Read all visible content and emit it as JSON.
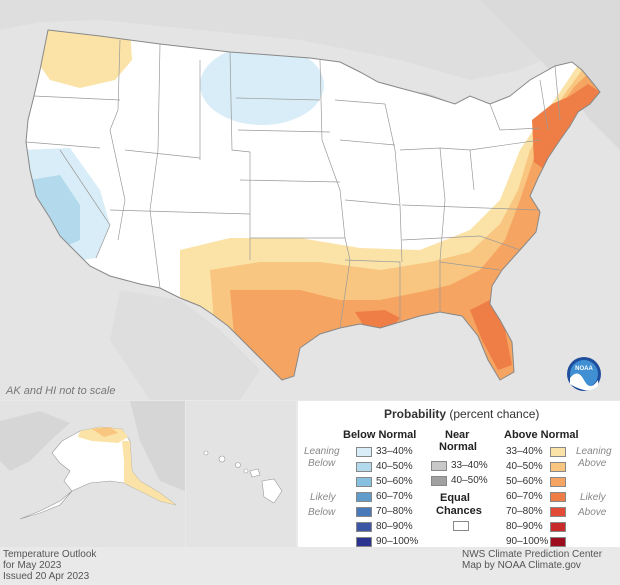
{
  "map_title": "Temperature Outlook",
  "period": "for May 2023",
  "issued": "Issued 20 Apr 2023",
  "scale_note": "AK and HI not to scale",
  "credit_line1": "NWS Climate Prediction Center",
  "credit_line2": "Map by NOAA Climate.gov",
  "logo_text": "NOAA",
  "legend": {
    "title_bold": "Probability",
    "title_rest": " (percent chance)",
    "below_header": "Below Normal",
    "near_header_1": "Near",
    "near_header_2": "Normal",
    "above_header": "Above Normal",
    "leaning_below_1": "Leaning",
    "leaning_below_2": "Below",
    "likely_below_1": "Likely",
    "likely_below_2": "Below",
    "leaning_above_1": "Leaning",
    "leaning_above_2": "Above",
    "likely_above_1": "Likely",
    "likely_above_2": "Above",
    "equal_1": "Equal",
    "equal_2": "Chances",
    "below": [
      {
        "label": "33–40%",
        "color": "#d8edf7"
      },
      {
        "label": "40–50%",
        "color": "#b2d9ec"
      },
      {
        "label": "50–60%",
        "color": "#86bfdf"
      },
      {
        "label": "60–70%",
        "color": "#5f9ccb"
      },
      {
        "label": "70–80%",
        "color": "#4a79b9"
      },
      {
        "label": "80–90%",
        "color": "#3a56a5"
      },
      {
        "label": "90–100%",
        "color": "#2a3490"
      }
    ],
    "near": [
      {
        "label": "33–40%",
        "color": "#c8c8c8"
      },
      {
        "label": "40–50%",
        "color": "#a0a0a0"
      }
    ],
    "above": [
      {
        "label": "33–40%",
        "color": "#fbe3a7"
      },
      {
        "label": "40–50%",
        "color": "#f8c680"
      },
      {
        "label": "50–60%",
        "color": "#f5a461"
      },
      {
        "label": "60–70%",
        "color": "#ee7e45"
      },
      {
        "label": "70–80%",
        "color": "#e24b35"
      },
      {
        "label": "80–90%",
        "color": "#c92a2a"
      },
      {
        "label": "90–100%",
        "color": "#9e0c1f"
      }
    ],
    "equal_color": "#ffffff"
  }
}
